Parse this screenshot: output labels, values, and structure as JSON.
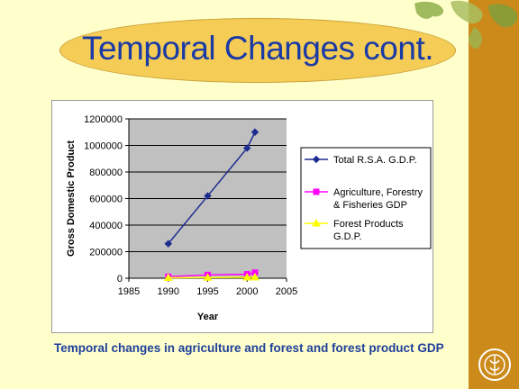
{
  "slide": {
    "title": "Temporal Changes cont.",
    "caption": "Temporal changes in agriculture and forest and forest product GDP"
  },
  "colors": {
    "background": "#ffffcc",
    "sidebar": "#cc8a1a",
    "title_ellipse": "#f5cc55",
    "title_text": "#1a3aa6",
    "plot_area": "#c0c0c0"
  },
  "icons": [
    "world-map-strip",
    "fao-logo-icon"
  ],
  "chart_data": {
    "type": "line",
    "xlabel": "Year",
    "ylabel": "Gross Domestic Product",
    "xlim": [
      1985,
      2005
    ],
    "ylim": [
      0,
      1200000
    ],
    "x_ticks": [
      "1985",
      "1990",
      "1995",
      "2000",
      "2005"
    ],
    "y_ticks": [
      "0",
      "200000",
      "400000",
      "600000",
      "800000",
      "1000000",
      "1200000"
    ],
    "grid": true,
    "legend_position": "right",
    "series": [
      {
        "name": "Total R.S.A. G.D.P.",
        "color": "#1f2c8f",
        "marker": "diamond",
        "x": [
          1990,
          1995,
          2000,
          2001
        ],
        "y": [
          260000,
          620000,
          980000,
          1100000
        ]
      },
      {
        "name": "Agriculture, Forestry & Fisheries GDP",
        "color": "#ff00ff",
        "marker": "square",
        "x": [
          1990,
          1995,
          2000,
          2001
        ],
        "y": [
          12000,
          25000,
          30000,
          42000
        ]
      },
      {
        "name": "Forest Products G.D.P.",
        "color": "#ffff00",
        "marker": "triangle",
        "x": [
          1990,
          1995,
          2000,
          2001
        ],
        "y": [
          3000,
          5000,
          7000,
          8000
        ]
      }
    ]
  }
}
